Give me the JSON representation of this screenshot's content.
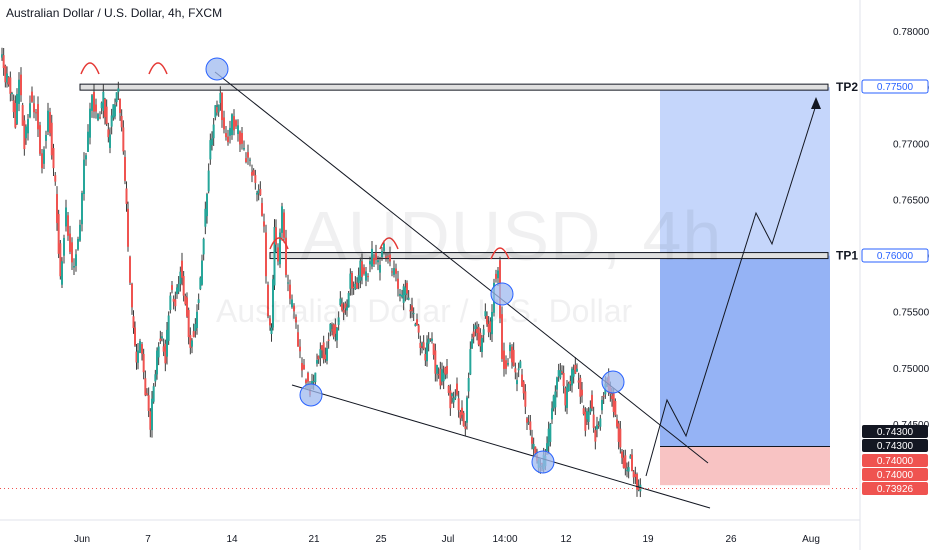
{
  "header": {
    "title": "Australian Dollar / U.S. Dollar, 4h, FXCM"
  },
  "watermark": {
    "symbol": "AUDUSD, 4h",
    "description": "Australian Dollar / U.S. Dollar"
  },
  "chart_data": {
    "type": "candlestick",
    "title": "Australian Dollar / U.S. Dollar, 4h, FXCM",
    "x_ticks": [
      "Jun",
      "7",
      "14",
      "21",
      "25",
      "Jul",
      "14:00",
      "12",
      "19",
      "26",
      "Aug"
    ],
    "y_ticks": [
      "0.78000",
      "0.77500",
      "0.77000",
      "0.76500",
      "0.76000",
      "0.75500",
      "0.75000",
      "0.74500"
    ],
    "ylim": [
      0.7363,
      0.7813
    ],
    "price_path": [
      [
        0,
        0.778
      ],
      [
        5,
        0.776
      ],
      [
        10,
        0.775
      ],
      [
        15,
        0.772
      ],
      [
        19,
        0.776
      ],
      [
        24,
        0.77
      ],
      [
        30,
        0.774
      ],
      [
        36,
        0.773
      ],
      [
        42,
        0.768
      ],
      [
        48,
        0.773
      ],
      [
        55,
        0.766
      ],
      [
        60,
        0.758
      ],
      [
        66,
        0.764
      ],
      [
        72,
        0.759
      ],
      [
        78,
        0.761
      ],
      [
        84,
        0.768
      ],
      [
        92,
        0.774
      ],
      [
        98,
        0.772
      ],
      [
        103,
        0.774
      ],
      [
        108,
        0.77
      ],
      [
        113,
        0.773
      ],
      [
        118,
        0.7745
      ],
      [
        123,
        0.769
      ],
      [
        126,
        0.764
      ],
      [
        130,
        0.757
      ],
      [
        133,
        0.753
      ],
      [
        136,
        0.75
      ],
      [
        140,
        0.752
      ],
      [
        145,
        0.748
      ],
      [
        150,
        0.745
      ],
      [
        155,
        0.75
      ],
      [
        160,
        0.753
      ],
      [
        165,
        0.751
      ],
      [
        170,
        0.757
      ],
      [
        175,
        0.756
      ],
      [
        180,
        0.759
      ],
      [
        185,
        0.756
      ],
      [
        190,
        0.752
      ],
      [
        195,
        0.754
      ],
      [
        200,
        0.758
      ],
      [
        205,
        0.764
      ],
      [
        210,
        0.77
      ],
      [
        215,
        0.773
      ],
      [
        220,
        0.774
      ],
      [
        226,
        0.77
      ],
      [
        232,
        0.772
      ],
      [
        238,
        0.771
      ],
      [
        244,
        0.769
      ],
      [
        250,
        0.768
      ],
      [
        255,
        0.766
      ],
      [
        260,
        0.765
      ],
      [
        264,
        0.762
      ],
      [
        268,
        0.754
      ],
      [
        271,
        0.753
      ],
      [
        274,
        0.762
      ],
      [
        278,
        0.759
      ],
      [
        282,
        0.764
      ],
      [
        286,
        0.758
      ],
      [
        290,
        0.756
      ],
      [
        294,
        0.755
      ],
      [
        298,
        0.752
      ],
      [
        302,
        0.75
      ],
      [
        306,
        0.749
      ],
      [
        310,
        0.748
      ],
      [
        315,
        0.75
      ],
      [
        320,
        0.752
      ],
      [
        325,
        0.751
      ],
      [
        330,
        0.754
      ],
      [
        335,
        0.753
      ],
      [
        340,
        0.756
      ],
      [
        345,
        0.755
      ],
      [
        350,
        0.758
      ],
      [
        355,
        0.757
      ],
      [
        360,
        0.759
      ],
      [
        366,
        0.758
      ],
      [
        372,
        0.76
      ],
      [
        378,
        0.759
      ],
      [
        384,
        0.7605
      ],
      [
        390,
        0.759
      ],
      [
        396,
        0.758
      ],
      [
        400,
        0.756
      ],
      [
        405,
        0.757
      ],
      [
        410,
        0.755
      ],
      [
        415,
        0.754
      ],
      [
        420,
        0.752
      ],
      [
        425,
        0.751
      ],
      [
        430,
        0.753
      ],
      [
        435,
        0.75
      ],
      [
        440,
        0.749
      ],
      [
        445,
        0.75
      ],
      [
        450,
        0.747
      ],
      [
        455,
        0.748
      ],
      [
        460,
        0.746
      ],
      [
        465,
        0.745
      ],
      [
        470,
        0.752
      ],
      [
        475,
        0.754
      ],
      [
        480,
        0.752
      ],
      [
        485,
        0.755
      ],
      [
        490,
        0.753
      ],
      [
        494,
        0.758
      ],
      [
        498,
        0.759
      ],
      [
        502,
        0.751
      ],
      [
        506,
        0.75
      ],
      [
        510,
        0.752
      ],
      [
        515,
        0.749
      ],
      [
        520,
        0.75
      ],
      [
        525,
        0.746
      ],
      [
        530,
        0.744
      ],
      [
        535,
        0.742
      ],
      [
        540,
        0.741
      ],
      [
        545,
        0.742
      ],
      [
        550,
        0.745
      ],
      [
        555,
        0.748
      ],
      [
        560,
        0.75
      ],
      [
        565,
        0.747
      ],
      [
        570,
        0.749
      ],
      [
        575,
        0.75
      ],
      [
        580,
        0.748
      ],
      [
        585,
        0.745
      ],
      [
        590,
        0.747
      ],
      [
        595,
        0.744
      ],
      [
        600,
        0.746
      ],
      [
        605,
        0.749
      ],
      [
        610,
        0.748
      ],
      [
        615,
        0.746
      ],
      [
        620,
        0.743
      ],
      [
        625,
        0.741
      ],
      [
        630,
        0.742
      ],
      [
        635,
        0.74
      ],
      [
        640,
        0.7392
      ]
    ],
    "price_path_comment_units": "x in pixels is not used; first value is bar index",
    "levels": [
      {
        "label": "TP2",
        "price": 0.775,
        "tag": "0.77500"
      },
      {
        "label": "TP1",
        "price": 0.76,
        "tag": "0.76000"
      }
    ],
    "price_tags": [
      {
        "text": "0.77500",
        "price": 0.775,
        "style": "blue-outline"
      },
      {
        "text": "0.76000",
        "price": 0.76,
        "style": "blue-outline"
      },
      {
        "text": "0.74300",
        "price": 0.74375,
        "style": "black"
      },
      {
        "text": "0.74300",
        "price": 0.743,
        "style": "black"
      },
      {
        "text": "0.74000",
        "price": 0.7402,
        "style": "red"
      },
      {
        "text": "0.74000",
        "price": 0.7395,
        "style": "red"
      },
      {
        "text": "0.73926",
        "price": 0.73926,
        "style": "red"
      }
    ],
    "position": {
      "entry": 0.743,
      "stop": 0.74,
      "target": 0.775,
      "tp1": 0.76
    },
    "colors": {
      "up": "#26a69a",
      "down": "#ef5350",
      "candle": "#3a3a3a",
      "profit_light": "#c5d6fb",
      "profit_dark": "#7aa0f2",
      "loss": "#f8c3c3",
      "circle_fill": "#9fb9ef",
      "circle_stroke": "#2962ff",
      "arc": "#e53935",
      "line": "#131722"
    }
  }
}
